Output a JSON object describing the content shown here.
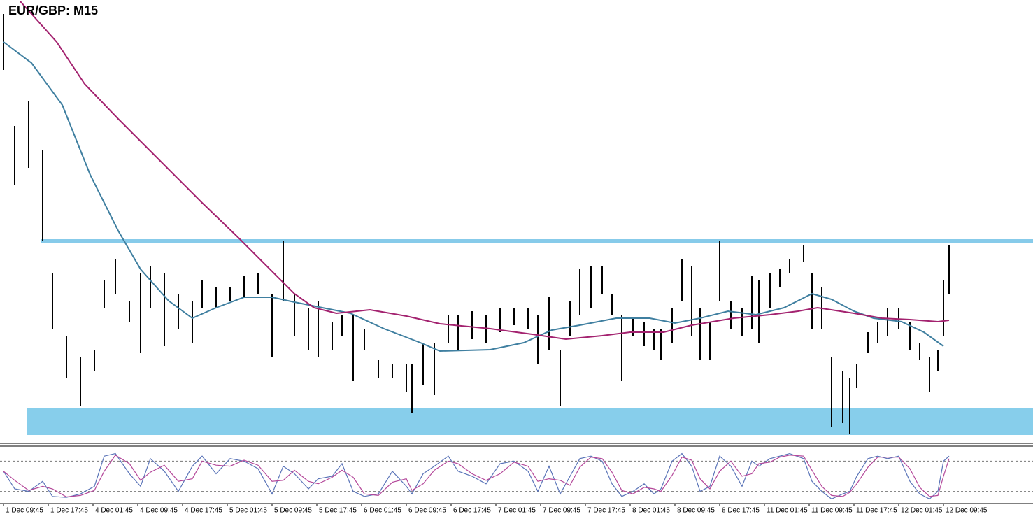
{
  "chart_data": [
    {
      "type": "ohlc",
      "title": "EUR/GBP: M15",
      "x": [
        0,
        8,
        18,
        28,
        35,
        45,
        55,
        65,
        72,
        80,
        90,
        98,
        105,
        115,
        125,
        135,
        142,
        152,
        162,
        172,
        182,
        192,
        200,
        208,
        218,
        225,
        235,
        242,
        250,
        258,
        268,
        278,
        288,
        292,
        300,
        308,
        318,
        325,
        335,
        345,
        355,
        365,
        375,
        382,
        390,
        398,
        405,
        412,
        420,
        428,
        435,
        442,
        450,
        458,
        465,
        470,
        478,
        485,
        492,
        498,
        505,
        512,
        520,
        528,
        535,
        540,
        548,
        555,
        562,
        572,
        578,
        585,
        592,
        600,
        605,
        610,
        618,
        625,
        632,
        640,
        648,
        655,
        662,
        668,
        672,
        676
      ],
      "high": [
        0.8522,
        0.849,
        0.8497,
        0.8483,
        0.8448,
        0.843,
        0.8424,
        0.8426,
        0.8446,
        0.8452,
        0.844,
        0.8448,
        0.845,
        0.8448,
        0.8442,
        0.844,
        0.8446,
        0.8444,
        0.8444,
        0.8447,
        0.8448,
        0.8442,
        0.8457,
        0.8442,
        0.8438,
        0.844,
        0.8434,
        0.8436,
        0.8436,
        0.8432,
        0.8423,
        0.8422,
        0.8422,
        0.8422,
        0.8428,
        0.8428,
        0.8436,
        0.8436,
        0.8437,
        0.8436,
        0.8438,
        0.8438,
        0.8438,
        0.8436,
        0.8441,
        0.8426,
        0.844,
        0.8449,
        0.845,
        0.845,
        0.8442,
        0.8436,
        0.8435,
        0.8434,
        0.8432,
        0.8432,
        0.8438,
        0.8452,
        0.845,
        0.8438,
        0.8434,
        0.8457,
        0.844,
        0.8438,
        0.8447,
        0.8446,
        0.8448,
        0.8449,
        0.8452,
        0.8456,
        0.8448,
        0.8444,
        0.8424,
        0.842,
        0.8418,
        0.8422,
        0.8431,
        0.8434,
        0.8438,
        0.8438,
        0.8434,
        0.8428,
        0.8424,
        0.8426,
        0.8446,
        0.8456
      ],
      "low": [
        0.8506,
        0.8473,
        0.8478,
        0.8457,
        0.8432,
        0.8418,
        0.841,
        0.842,
        0.8438,
        0.8442,
        0.8434,
        0.8425,
        0.8438,
        0.8427,
        0.8432,
        0.8428,
        0.8438,
        0.8438,
        0.844,
        0.8441,
        0.8442,
        0.8424,
        0.844,
        0.843,
        0.8426,
        0.8424,
        0.8426,
        0.843,
        0.8417,
        0.8426,
        0.8418,
        0.8418,
        0.8414,
        0.8408,
        0.8416,
        0.8413,
        0.8428,
        0.8426,
        0.8429,
        0.8428,
        0.8431,
        0.8433,
        0.8432,
        0.8422,
        0.8426,
        0.841,
        0.843,
        0.8436,
        0.8438,
        0.8442,
        0.8436,
        0.8417,
        0.843,
        0.8427,
        0.8426,
        0.8423,
        0.8428,
        0.844,
        0.843,
        0.8423,
        0.8423,
        0.844,
        0.8432,
        0.843,
        0.8432,
        0.8428,
        0.8438,
        0.8444,
        0.8448,
        0.8451,
        0.8432,
        0.8432,
        0.8404,
        0.8405,
        0.8402,
        0.8415,
        0.8425,
        0.8428,
        0.843,
        0.8432,
        0.8426,
        0.8423,
        0.8414,
        0.842,
        0.843,
        0.8442
      ],
      "lines": [
        {
          "color": "#3f7fa0",
          "x": [
            0,
            20,
            42,
            62,
            82,
            98,
            118,
            135,
            152,
            172,
            192,
            208,
            228,
            248,
            272,
            298,
            312,
            348,
            372,
            392,
            412,
            438,
            462,
            480,
            498,
            518,
            538,
            558,
            578,
            592,
            608,
            622,
            642,
            658,
            672
          ],
          "values": [
            0.8514,
            0.8508,
            0.8496,
            0.8476,
            0.846,
            0.8449,
            0.844,
            0.8435,
            0.8438,
            0.8441,
            0.8441,
            0.84396,
            0.8438,
            0.84364,
            0.8432,
            0.8428,
            0.84256,
            0.8426,
            0.8428,
            0.84316,
            0.8433,
            0.8435,
            0.8435,
            0.84336,
            0.8435,
            0.8437,
            0.8436,
            0.8438,
            0.8442,
            0.84404,
            0.8437,
            0.8435,
            0.8434,
            0.8431,
            0.8427
          ]
        },
        {
          "color": "#a3226f",
          "x": [
            12,
            38,
            58,
            82,
            112,
            142,
            168,
            188,
            208,
            222,
            238,
            262,
            288,
            312,
            348,
            378,
            402,
            428,
            448,
            472,
            492,
            522,
            548,
            568,
            582,
            608,
            628,
            648,
            668,
            676
          ],
          "values": [
            0.85256,
            0.8514,
            0.8502,
            0.8492,
            0.848,
            0.8468,
            0.8458,
            0.845,
            0.8442,
            0.8438,
            0.84364,
            0.84374,
            0.84356,
            0.84334,
            0.8432,
            0.84304,
            0.8429,
            0.843,
            0.8431,
            0.8431,
            0.8433,
            0.8435,
            0.8436,
            0.8437,
            0.8438,
            0.84364,
            0.8435,
            0.84346,
            0.8434,
            0.84344
          ]
        }
      ],
      "levels": [
        {
          "value": 0.8457,
          "from": 26.5,
          "color": "#87cbea"
        },
        {
          "lower": 0.84016,
          "upper": 0.84094,
          "from": 16.5,
          "color": "#87ceeb"
        }
      ],
      "xlim": [
        -2.5,
        736
      ],
      "ylim": [
        0.84,
        0.8526
      ],
      "xticks": [
        {
          "value": 0,
          "label": "1 Dec 09:45"
        },
        {
          "value": 32,
          "label": "1 Dec 17:45"
        },
        {
          "value": 64,
          "label": "4 Dec 01:45"
        },
        {
          "value": 96,
          "label": "4 Dec 09:45"
        },
        {
          "value": 128,
          "label": "4 Dec 17:45"
        },
        {
          "value": 160,
          "label": "5 Dec 01:45"
        },
        {
          "value": 192,
          "label": "5 Dec 09:45"
        },
        {
          "value": 224,
          "label": "5 Dec 17:45"
        },
        {
          "value": 256,
          "label": "6 Dec 01:45"
        },
        {
          "value": 288,
          "label": "6 Dec 09:45"
        },
        {
          "value": 320,
          "label": "6 Dec 17:45"
        },
        {
          "value": 352,
          "label": "7 Dec 01:45"
        },
        {
          "value": 384,
          "label": "7 Dec 09:45"
        },
        {
          "value": 416,
          "label": "7 Dec 17:45"
        },
        {
          "value": 448,
          "label": "8 Dec 01:45"
        },
        {
          "value": 480,
          "label": "8 Dec 09:45"
        },
        {
          "value": 512,
          "label": "8 Dec 17:45"
        },
        {
          "value": 544,
          "label": "11 Dec 01:45"
        },
        {
          "value": 576,
          "label": "11 Dec 09:45"
        },
        {
          "value": 608,
          "label": "11 Dec 17:45"
        },
        {
          "value": 640,
          "label": "12 Dec 01:45"
        },
        {
          "value": 672,
          "label": "12 Dec 09:45"
        }
      ]
    },
    {
      "type": "line",
      "x": [
        0,
        8,
        18,
        28,
        35,
        45,
        55,
        65,
        72,
        80,
        90,
        98,
        105,
        115,
        125,
        135,
        142,
        152,
        162,
        172,
        182,
        192,
        200,
        208,
        218,
        225,
        235,
        242,
        250,
        258,
        268,
        278,
        288,
        292,
        300,
        308,
        318,
        325,
        335,
        345,
        355,
        365,
        375,
        382,
        390,
        398,
        405,
        412,
        420,
        428,
        435,
        442,
        450,
        458,
        465,
        470,
        478,
        485,
        492,
        498,
        505,
        512,
        520,
        528,
        535,
        540,
        548,
        555,
        562,
        572,
        578,
        585,
        592,
        600,
        605,
        610,
        618,
        625,
        632,
        640,
        648,
        655,
        662,
        668,
        672,
        676
      ],
      "series": [
        {
          "color": "#5a74b8",
          "values": [
            60,
            25,
            20,
            40,
            10,
            8,
            15,
            30,
            90,
            95,
            55,
            30,
            85,
            60,
            20,
            70,
            90,
            55,
            85,
            80,
            65,
            15,
            70,
            55,
            25,
            45,
            50,
            75,
            20,
            10,
            15,
            60,
            30,
            15,
            55,
            70,
            90,
            60,
            50,
            35,
            75,
            80,
            60,
            20,
            70,
            15,
            50,
            85,
            90,
            80,
            35,
            10,
            20,
            35,
            15,
            25,
            80,
            95,
            70,
            20,
            30,
            90,
            70,
            30,
            80,
            70,
            85,
            90,
            95,
            85,
            40,
            20,
            5,
            15,
            20,
            50,
            85,
            90,
            85,
            90,
            40,
            15,
            5,
            20,
            80,
            90
          ]
        },
        {
          "color": "#b4489a",
          "values": [
            60,
            42,
            22,
            30,
            25,
            9,
            12,
            22,
            60,
            92,
            75,
            42,
            58,
            72,
            40,
            45,
            80,
            72,
            70,
            82,
            72,
            40,
            42,
            62,
            40,
            35,
            48,
            62,
            48,
            15,
            12,
            38,
            45,
            22,
            35,
            62,
            80,
            75,
            55,
            42,
            55,
            78,
            70,
            40,
            45,
            42,
            32,
            68,
            88,
            85,
            58,
            22,
            15,
            28,
            25,
            20,
            52,
            88,
            82,
            45,
            25,
            60,
            80,
            50,
            55,
            75,
            78,
            88,
            92,
            90,
            62,
            30,
            12,
            10,
            18,
            35,
            68,
            88,
            88,
            88,
            65,
            28,
            10,
            12,
            50,
            85
          ]
        }
      ],
      "levels": [
        20,
        80
      ],
      "ylim": [
        0,
        100
      ]
    }
  ]
}
